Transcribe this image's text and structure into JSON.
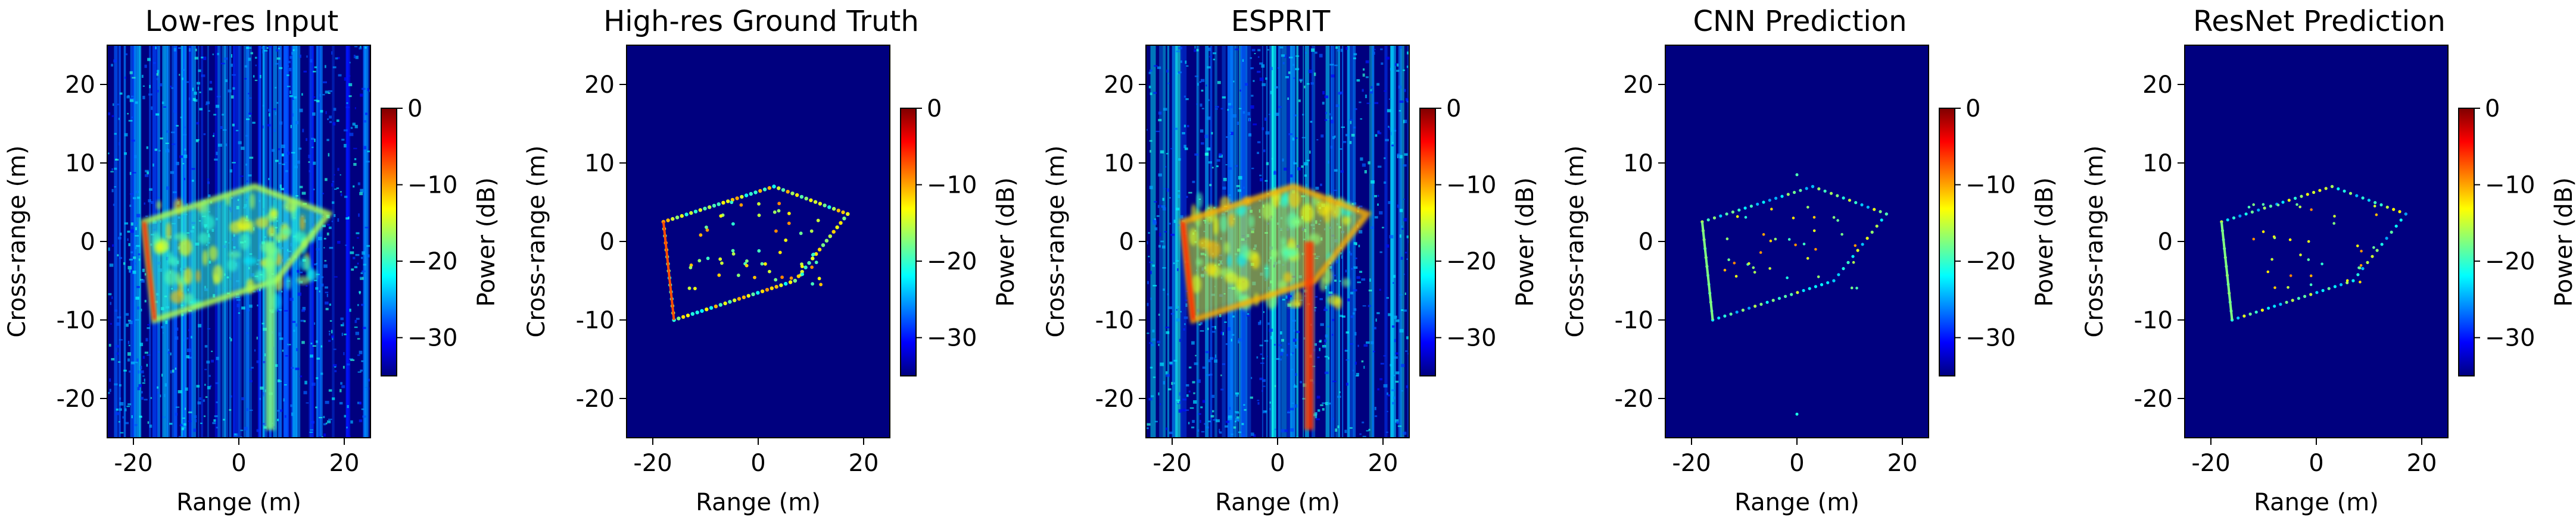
{
  "figure": {
    "colormap": "jet",
    "background_color": "#00007f",
    "panels": [
      {
        "id": "lowres",
        "title": "Low-res Input",
        "variant": "lowres"
      },
      {
        "id": "gt",
        "title": "High-res Ground Truth",
        "variant": "gt"
      },
      {
        "id": "esprit",
        "title": "ESPRIT",
        "variant": "esprit"
      },
      {
        "id": "cnn",
        "title": "CNN Prediction",
        "variant": "cnn"
      },
      {
        "id": "resnet",
        "title": "ResNet Prediction",
        "variant": "resnet"
      }
    ]
  },
  "chart_data": {
    "type": "heatmap",
    "xlabel": "Range (m)",
    "ylabel": "Cross-range (m)",
    "xlim": [
      -25,
      25
    ],
    "ylim": [
      -25,
      25
    ],
    "xticks": [
      -20,
      0,
      20
    ],
    "yticks": [
      -20,
      -10,
      0,
      10,
      20
    ],
    "colorbar": {
      "label": "Power (dB)",
      "range": [
        -35,
        0
      ],
      "ticks": [
        0,
        -10,
        -20,
        -30
      ],
      "tick_labels": [
        "0",
        "−10",
        "−20",
        "−30"
      ]
    },
    "scene": {
      "polygon_vertices_m": [
        [
          -18,
          2.5
        ],
        [
          3,
          7
        ],
        [
          17,
          3.5
        ],
        [
          7,
          -5
        ],
        [
          -16,
          -10
        ]
      ],
      "strong_edge": [
        [
          -18,
          2.5
        ],
        [
          -16,
          -10
        ]
      ],
      "vertical_streak": {
        "x_m": 6,
        "y_range_m": [
          -24,
          0
        ]
      }
    }
  }
}
